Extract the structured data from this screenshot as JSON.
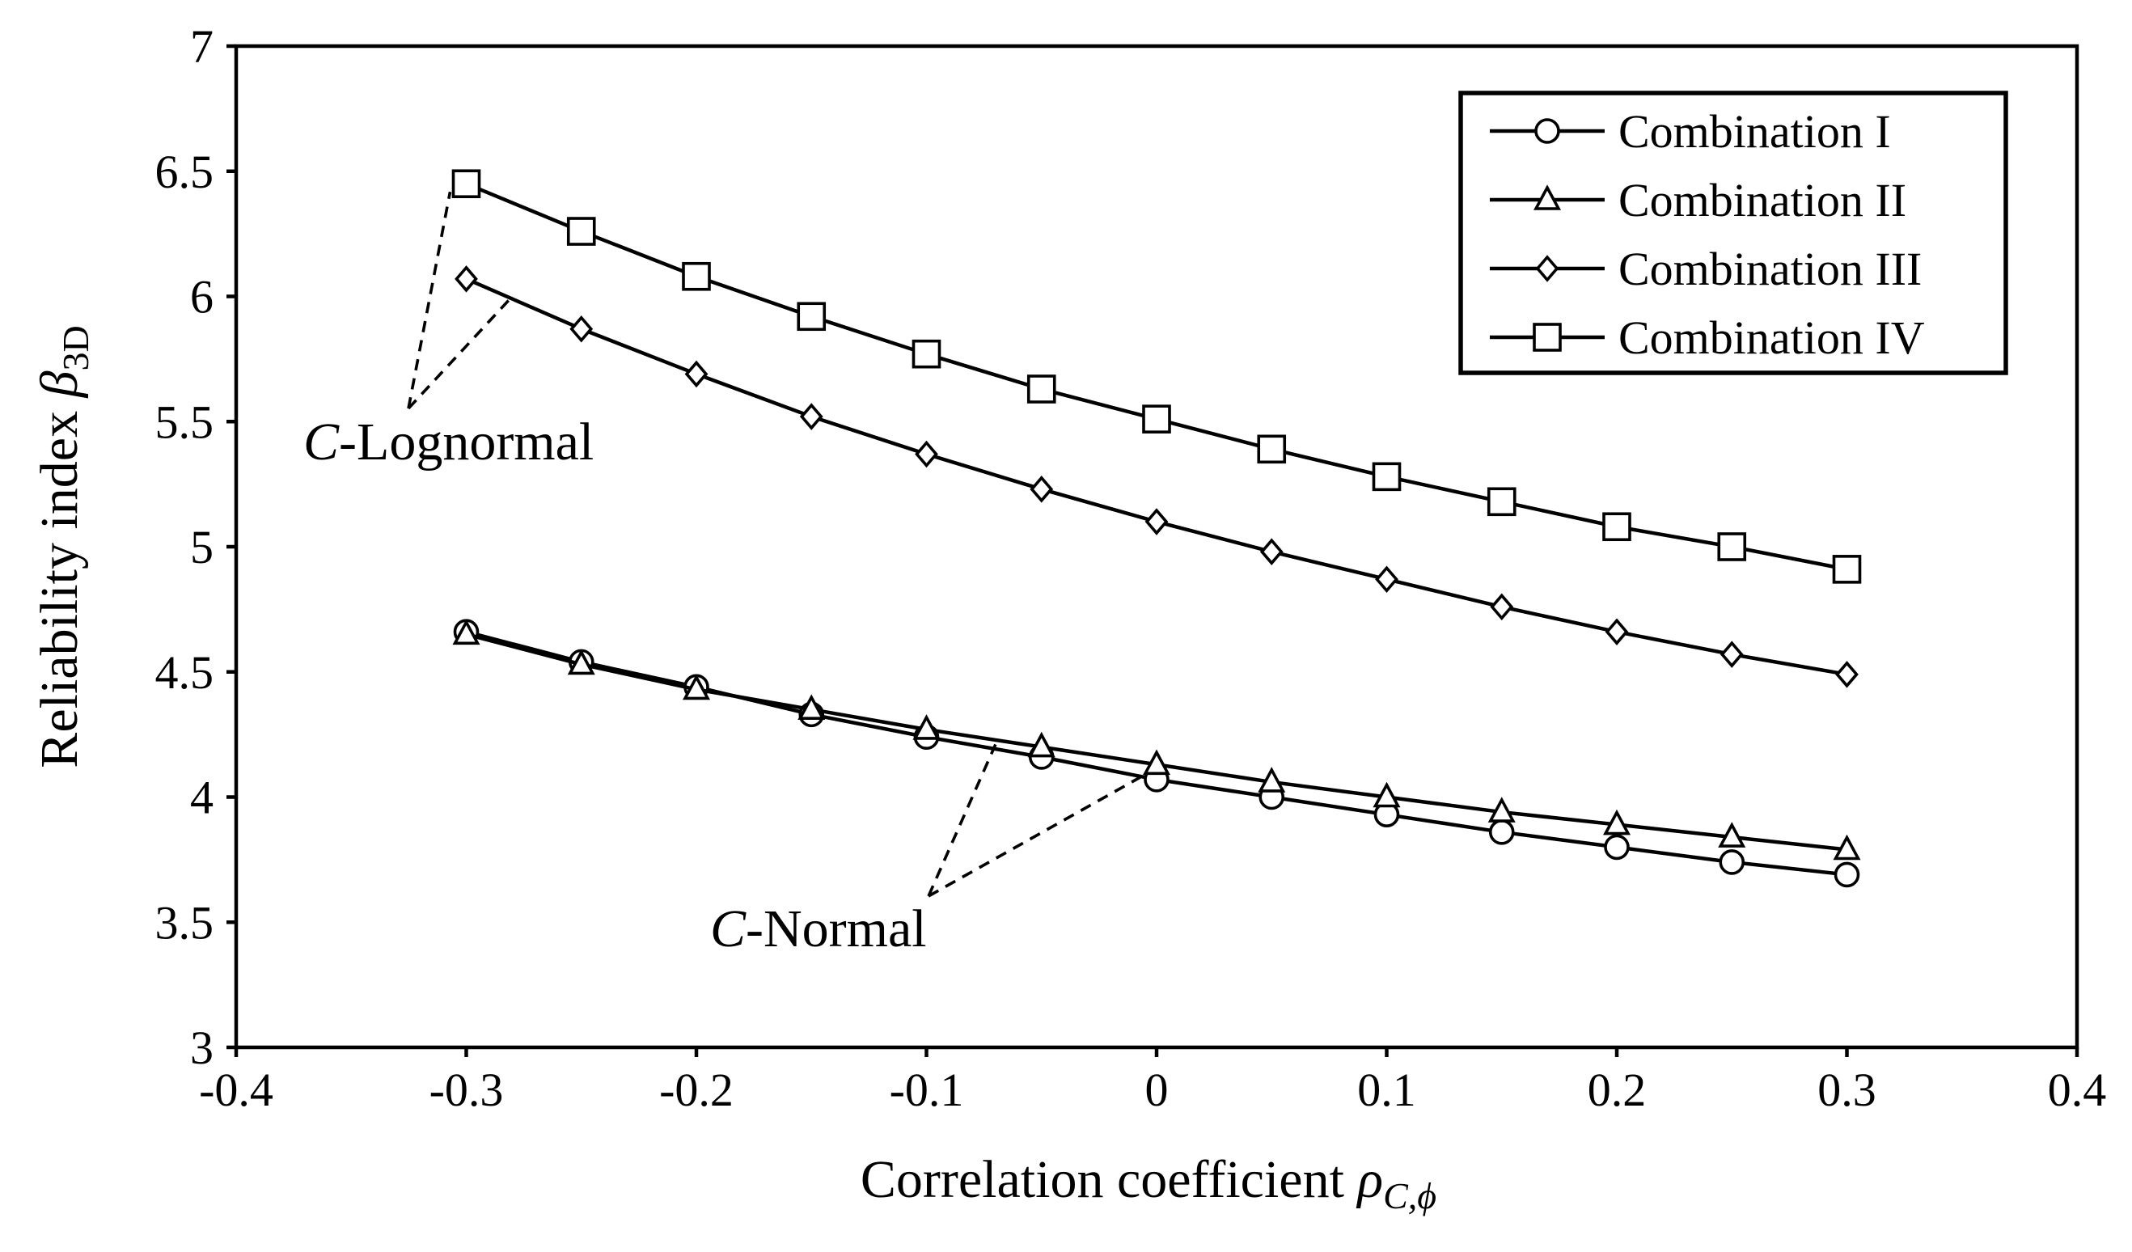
{
  "chart_data": {
    "type": "line",
    "xlabel": "Correlation coefficient",
    "xlabel_symbol": "ρ",
    "xlabel_sub": "C,ϕ",
    "ylabel": "Reliability index",
    "ylabel_symbol": "β",
    "ylabel_sub": "3D",
    "xlim": [
      -0.4,
      0.4
    ],
    "ylim": [
      3,
      7
    ],
    "xticks": [
      "-0.4",
      "-0.3",
      "-0.2",
      "-0.1",
      "0",
      "0.1",
      "0.2",
      "0.3",
      "0.4"
    ],
    "yticks": [
      "3",
      "3.5",
      "4",
      "4.5",
      "5",
      "5.5",
      "6",
      "6.5",
      "7"
    ],
    "grid": false,
    "legend_position": "top-right",
    "x": [
      -0.3,
      -0.25,
      -0.2,
      -0.15,
      -0.1,
      -0.05,
      0,
      0.05,
      0.1,
      0.15,
      0.2,
      0.25,
      0.3
    ],
    "series": [
      {
        "name": "Combination I",
        "marker": "circle",
        "values": [
          4.66,
          4.54,
          4.44,
          4.33,
          4.24,
          4.16,
          4.07,
          4.0,
          3.93,
          3.86,
          3.8,
          3.74,
          3.69
        ]
      },
      {
        "name": "Combination II",
        "marker": "triangle",
        "values": [
          4.65,
          4.53,
          4.43,
          4.35,
          4.27,
          4.2,
          4.13,
          4.06,
          4.0,
          3.94,
          3.89,
          3.84,
          3.79
        ]
      },
      {
        "name": "Combination III",
        "marker": "diamond",
        "values": [
          6.07,
          5.87,
          5.69,
          5.52,
          5.37,
          5.23,
          5.1,
          4.98,
          4.87,
          4.76,
          4.66,
          4.57,
          4.49
        ]
      },
      {
        "name": "Combination IV",
        "marker": "square",
        "values": [
          6.45,
          6.26,
          6.08,
          5.92,
          5.77,
          5.63,
          5.51,
          5.39,
          5.28,
          5.18,
          5.08,
          5.0,
          4.91
        ]
      }
    ],
    "annotations": [
      {
        "italic": "C",
        "text": "-Lognormal"
      },
      {
        "italic": "C",
        "text": "-Normal"
      }
    ]
  }
}
